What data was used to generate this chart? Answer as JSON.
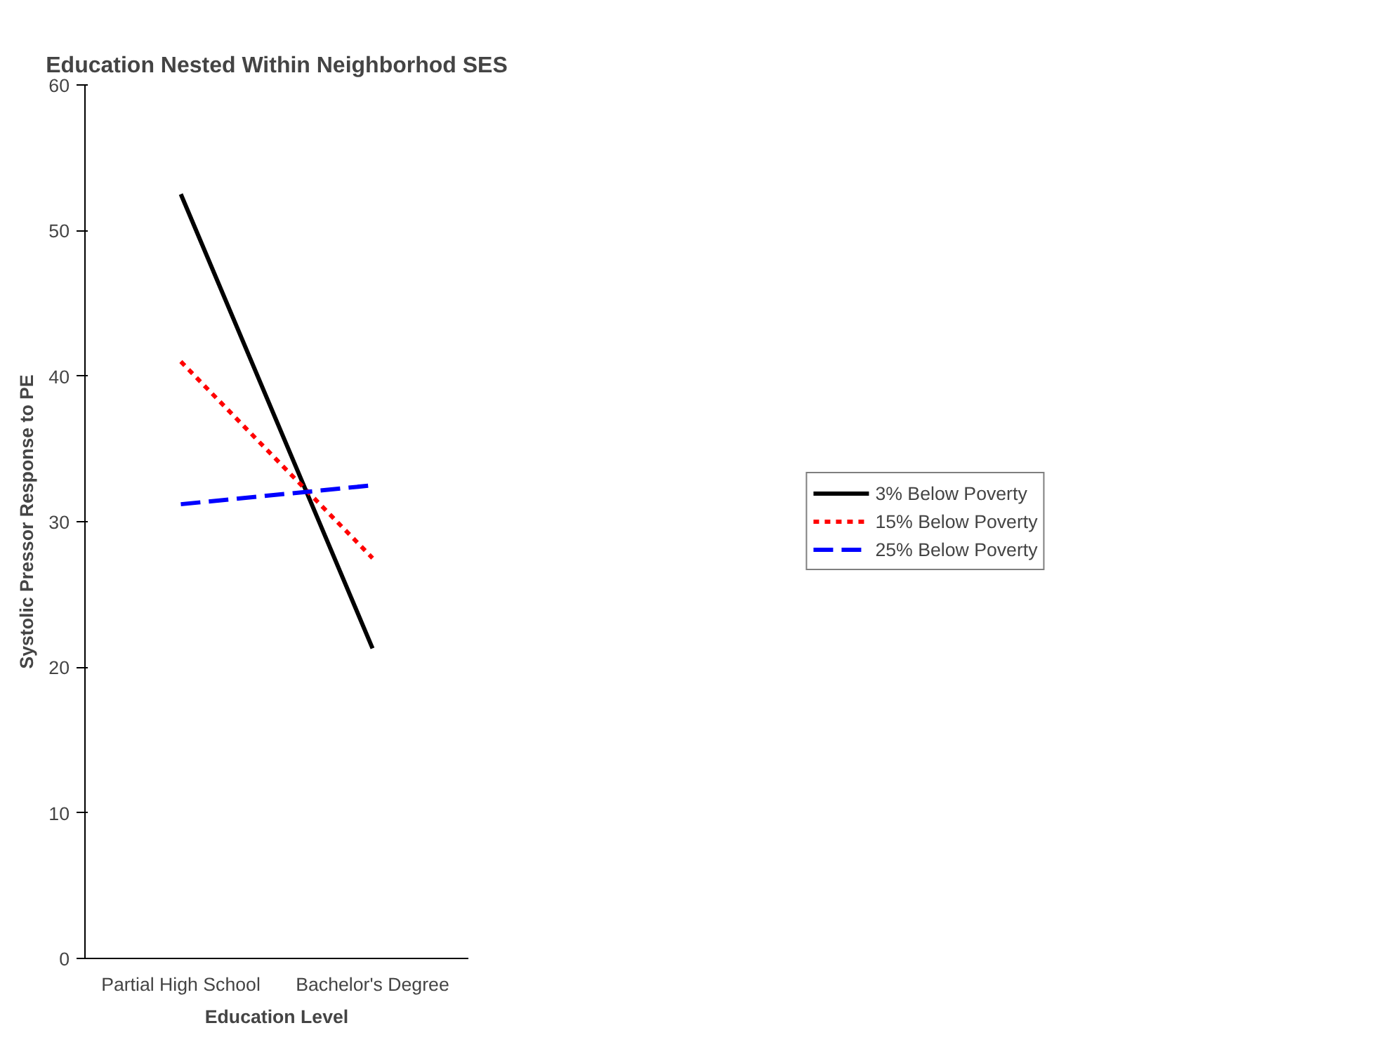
{
  "chart_data": {
    "type": "line",
    "title": "Education Nested Within Neighborhod SES",
    "xlabel": "Education Level",
    "ylabel": "Systolic Pressor Response to PE",
    "categories": [
      "Partial High School",
      "Bachelor's Degree"
    ],
    "series": [
      {
        "name": "3% Below Poverty",
        "color": "#000000",
        "values": [
          52.5,
          21.3
        ],
        "line_style": "solid"
      },
      {
        "name": "15% Below Poverty",
        "color": "#ff0000",
        "values": [
          41.0,
          27.5
        ],
        "line_style": "dotted"
      },
      {
        "name": "25% Below Poverty",
        "color": "#0000ff",
        "values": [
          31.2,
          32.5
        ],
        "line_style": "dashed"
      }
    ],
    "ylim": [
      0,
      60
    ],
    "yticks": [
      0,
      10,
      20,
      30,
      40,
      50,
      60
    ],
    "grid": false,
    "legend": "right",
    "marker": "none"
  }
}
